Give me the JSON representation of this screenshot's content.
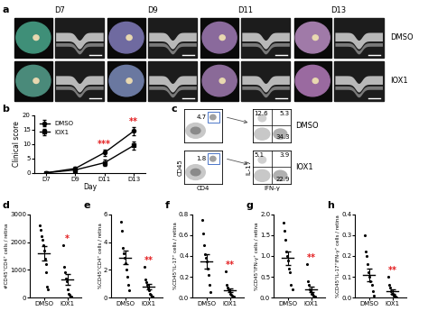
{
  "panel_labels": [
    "a",
    "b",
    "c",
    "d",
    "e",
    "f",
    "g",
    "h"
  ],
  "images": {
    "days": [
      "D7",
      "D9",
      "D11",
      "D13"
    ],
    "groups": [
      "DMSO",
      "IOX1"
    ]
  },
  "flow": {
    "gate_x_label": "CD4",
    "gate_y_label": "CD45",
    "quadrant_x_label": "IFN-γ",
    "quadrant_y_label": "IL-17",
    "tick_labels": false,
    "rows": [
      {
        "name": "DMSO",
        "gate": 4.7,
        "quadrants": [
          12.6,
          5.3,
          34.3
        ]
      },
      {
        "name": "IOX1",
        "gate": 1.8,
        "quadrants": [
          5.1,
          3.9,
          22.9
        ]
      }
    ]
  },
  "chart_data": [
    {
      "type": "line",
      "x_label": "Day",
      "y_label": "Clinical score",
      "categories": [
        "D7",
        "D9",
        "D11",
        "D13"
      ],
      "series": [
        {
          "name": "DMSO",
          "values": [
            0,
            1.5,
            7,
            14.5
          ],
          "errors": [
            0,
            0.5,
            1,
            1.5
          ],
          "marker": "circle"
        },
        {
          "name": "IOX1",
          "values": [
            0,
            1,
            3.5,
            9.5
          ],
          "errors": [
            0,
            0.3,
            1,
            1.5
          ],
          "marker": "square"
        }
      ],
      "ylim": [
        0,
        20
      ],
      "yticks": [
        0,
        5,
        10,
        15,
        20
      ],
      "legend": "upper left",
      "annotations": [
        {
          "category": "D11",
          "text": "***"
        },
        {
          "category": "D13",
          "text": "**"
        }
      ]
    },
    {
      "type": "scatter",
      "y_label": "#CD45⁺CD4⁺ cells / retina",
      "categories": [
        "DMSO",
        "IOX1"
      ],
      "values": [
        [
          2600,
          2450,
          2200,
          2100,
          1900,
          1700,
          1400,
          1200,
          900,
          400,
          300
        ],
        [
          1900,
          1100,
          900,
          700,
          600,
          300,
          150,
          100,
          50,
          30
        ]
      ],
      "means": [
        1600,
        650
      ],
      "sem": [
        250,
        200
      ],
      "marker": "circle",
      "ylim": [
        0,
        3000
      ],
      "yticks": [
        0,
        1000,
        2000,
        3000
      ],
      "annotations": [
        {
          "category": "IOX1",
          "text": "*"
        }
      ]
    },
    {
      "type": "scatter",
      "y_label": "%CD45⁺CD4⁺ cells / retina",
      "categories": [
        "DMSO",
        "IOX1"
      ],
      "values": [
        [
          5.5,
          4.8,
          3.6,
          3.2,
          2.9,
          2.5,
          2.0,
          1.5,
          0.9,
          0.5
        ],
        [
          2.2,
          1.3,
          1.1,
          0.9,
          0.7,
          0.5,
          0.3,
          0.2,
          0.1,
          0.1
        ]
      ],
      "means": [
        2.9,
        0.8
      ],
      "sem": [
        0.5,
        0.2
      ],
      "marker": "circle",
      "ylim": [
        0,
        6
      ],
      "yticks": [
        0,
        2,
        4,
        6
      ],
      "annotations": [
        {
          "category": "IOX1",
          "text": "**"
        }
      ]
    },
    {
      "type": "scatter",
      "y_label": "%CD45⁺IL-17⁺ cells / retina",
      "categories": [
        "DMSO",
        "IOX1"
      ],
      "values": [
        [
          0.75,
          0.62,
          0.5,
          0.42,
          0.38,
          0.35,
          0.28,
          0.22,
          0.12,
          0.05
        ],
        [
          0.25,
          0.12,
          0.1,
          0.08,
          0.06,
          0.04,
          0.03,
          0.02,
          0.01,
          0.01
        ]
      ],
      "means": [
        0.35,
        0.07
      ],
      "sem": [
        0.07,
        0.02
      ],
      "marker": "circle",
      "ylim": [
        0,
        0.8
      ],
      "yticks": [
        {
          "value": 0,
          "label": "0.0"
        },
        0.2,
        0.4,
        0.6,
        0.8
      ],
      "annotations": [
        {
          "category": "IOX1",
          "text": "**"
        }
      ]
    },
    {
      "type": "scatter",
      "y_label": "%CD45⁺IFN-γ⁺ cells / retina",
      "categories": [
        "DMSO",
        "IOX1"
      ],
      "values": [
        [
          1.8,
          1.6,
          1.4,
          1.1,
          1.0,
          0.9,
          0.7,
          0.6,
          0.3,
          0.2
        ],
        [
          0.8,
          0.4,
          0.3,
          0.2,
          0.15,
          0.1,
          0.08,
          0.05,
          0.03,
          0.02
        ]
      ],
      "means": [
        0.95,
        0.2
      ],
      "sem": [
        0.16,
        0.07
      ],
      "marker": "circle",
      "ylim": [
        0,
        2.0
      ],
      "yticks": [
        {
          "value": 0,
          "label": "0.0"
        },
        0.5,
        1.0,
        1.5,
        2.0
      ],
      "annotations": [
        {
          "category": "IOX1",
          "text": "**"
        }
      ]
    },
    {
      "type": "scatter",
      "y_label": "%CD45⁺IL-17⁺IFN-γ⁺ cells / retina",
      "categories": [
        "DMSO",
        "IOX1"
      ],
      "values": [
        [
          0.3,
          0.22,
          0.2,
          0.16,
          0.12,
          0.1,
          0.08,
          0.06,
          0.03,
          0.01
        ],
        [
          0.1,
          0.06,
          0.05,
          0.03,
          0.02,
          0.02,
          0.01,
          0.01,
          0.005,
          0.0
        ]
      ],
      "means": [
        0.11,
        0.03
      ],
      "sem": [
        0.03,
        0.01
      ],
      "marker": "circle",
      "ylim": [
        0,
        0.4
      ],
      "yticks": [
        {
          "value": 0,
          "label": "0.0"
        },
        0.1,
        0.2,
        0.3,
        0.4
      ],
      "annotations": [
        {
          "category": "IOX1",
          "text": "**"
        }
      ]
    }
  ]
}
